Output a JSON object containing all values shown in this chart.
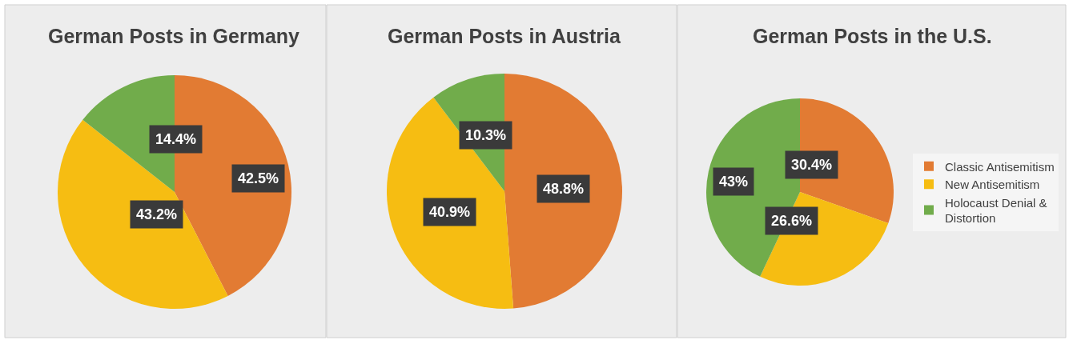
{
  "chart_data": [
    {
      "type": "pie",
      "title": "German Posts in Germany",
      "categories": [
        null,
        null,
        null
      ],
      "values": [
        42.5,
        43.2,
        14.4
      ],
      "colors": [
        "#e27b33",
        "#f6bd12",
        "#71ac4b"
      ],
      "value_labels": [
        "42.5%",
        "43.2%",
        "14.4%"
      ],
      "legend": false
    },
    {
      "type": "pie",
      "title": "German Posts in Austria",
      "categories": [
        null,
        null,
        null
      ],
      "values": [
        48.8,
        40.9,
        10.3
      ],
      "colors": [
        "#e27b33",
        "#f6bd12",
        "#71ac4b"
      ],
      "value_labels": [
        "48.8%",
        "40.9%",
        "10.3%"
      ],
      "legend": false
    },
    {
      "type": "pie",
      "title": "German Posts in the U.S.",
      "categories": [
        "Classic Antisemitism",
        "New Antisemitism",
        "Holocaust Denial & Distortion"
      ],
      "values": [
        30.4,
        26.6,
        43
      ],
      "colors": [
        "#e27b33",
        "#f6bd12",
        "#71ac4b"
      ],
      "value_labels": [
        "30.4%",
        "26.6%",
        "43%"
      ],
      "legend": "right"
    }
  ]
}
